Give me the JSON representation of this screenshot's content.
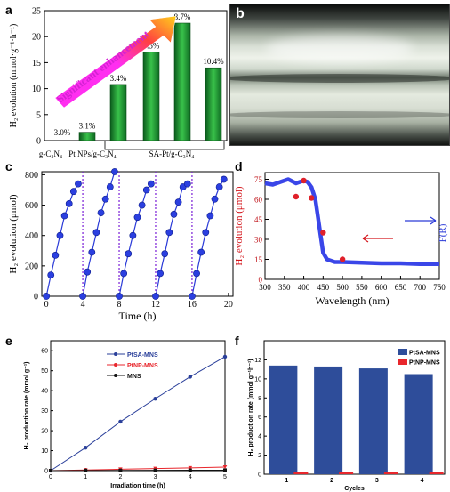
{
  "panel_labels": {
    "a": "a",
    "b": "b",
    "c": "c",
    "d": "d",
    "e": "e",
    "f": "f"
  },
  "chart_data": [
    {
      "panel": "a",
      "type": "bar",
      "categories": [
        "g-C3N4",
        "Pt NPs/g-C3N4",
        "SA-Pt/g-C3N4 (3.4%)",
        "SA-Pt/g-C3N4 (5.5%)",
        "SA-Pt/g-C3N4 (8.7%)",
        "SA-Pt/g-C3N4 (10.4%)"
      ],
      "values": [
        0.0,
        1.6,
        10.8,
        17.0,
        22.6,
        14.0
      ],
      "bar_labels": [
        "3.0%",
        "3.1%",
        "3.4%",
        "5.5%",
        "8.7%",
        "10.4%"
      ],
      "x_tick_labels": [
        "g-C₃N₄",
        "Pt NPs/g-C₃N₄",
        "SA-Pt/g-C₃N₄"
      ],
      "ylabel": "H₂ evolution (mmol·g⁻¹·h⁻¹)",
      "ylim": [
        0,
        25
      ],
      "yticks": [
        0,
        5,
        10,
        15,
        20,
        25
      ],
      "annotation": "Significant enhancement"
    },
    {
      "panel": "c",
      "type": "line",
      "xlabel": "Time (h)",
      "ylabel": "H₂ evolution (μmol)",
      "xlim": [
        -0.5,
        20.5
      ],
      "ylim": [
        0,
        820
      ],
      "xticks": [
        0,
        4,
        8,
        12,
        16,
        20
      ],
      "yticks": [
        0,
        200,
        400,
        600,
        800
      ],
      "cycle_boundaries": [
        4,
        8,
        12,
        16
      ],
      "series": [
        {
          "x": [
            0,
            0.5,
            1,
            1.5,
            2,
            2.5,
            3,
            3.5
          ],
          "y": [
            0,
            140,
            270,
            400,
            530,
            610,
            690,
            740
          ]
        },
        {
          "x": [
            4,
            4.5,
            5,
            5.5,
            6,
            6.5,
            7,
            7.5
          ],
          "y": [
            0,
            160,
            290,
            420,
            550,
            640,
            720,
            820
          ]
        },
        {
          "x": [
            8,
            8.5,
            9,
            9.5,
            10,
            10.5,
            11,
            11.5
          ],
          "y": [
            0,
            150,
            280,
            400,
            520,
            600,
            700,
            740
          ]
        },
        {
          "x": [
            12,
            12.5,
            13,
            13.5,
            14,
            14.5,
            15,
            15.5
          ],
          "y": [
            0,
            150,
            280,
            420,
            540,
            620,
            720,
            740
          ]
        },
        {
          "x": [
            16,
            16.5,
            17,
            17.5,
            18,
            18.5,
            19,
            19.5
          ],
          "y": [
            0,
            150,
            290,
            420,
            530,
            640,
            720,
            770
          ]
        }
      ]
    },
    {
      "panel": "d",
      "type": "line",
      "xlabel": "Wavelength (nm)",
      "ylabel_left": "H₂ evolution (μmol)",
      "ylabel_right": "F(R)",
      "xlim": [
        300,
        750
      ],
      "ylim": [
        0,
        80
      ],
      "xticks": [
        300,
        350,
        400,
        450,
        500,
        550,
        600,
        650,
        700,
        750
      ],
      "yticks": [
        0,
        15,
        30,
        45,
        60,
        75
      ],
      "absorption_curve": {
        "x": [
          300,
          320,
          340,
          360,
          380,
          400,
          410,
          420,
          430,
          440,
          450,
          460,
          480,
          500,
          550,
          600,
          650,
          700,
          750
        ],
        "y": [
          72,
          71,
          73,
          75,
          72,
          74,
          73,
          69,
          60,
          40,
          20,
          15,
          13,
          13,
          12.5,
          12,
          12,
          11.5,
          11.5
        ]
      },
      "h2_points": {
        "x": [
          380,
          400,
          420,
          450,
          500
        ],
        "y": [
          62,
          74,
          61,
          35,
          15
        ]
      }
    },
    {
      "panel": "e",
      "type": "line",
      "xlabel": "Irradiation time (h)",
      "ylabel": "H₂ production rate (mmol g⁻¹)",
      "xlim": [
        0,
        5
      ],
      "ylim": [
        0,
        65
      ],
      "xticks": [
        0,
        1,
        2,
        3,
        4,
        5
      ],
      "yticks": [
        0,
        10,
        20,
        30,
        40,
        50,
        60
      ],
      "legend_position": "top-center",
      "series": [
        {
          "name": "PtSA-MNS",
          "color": "#2a3f9a",
          "marker": "circle",
          "x": [
            0,
            1,
            2,
            3,
            4,
            5
          ],
          "y": [
            0,
            11.5,
            24.5,
            36,
            47,
            57
          ]
        },
        {
          "name": "PtNP-MNS",
          "color": "#e8262c",
          "marker": "triangle-down",
          "x": [
            0,
            1,
            2,
            3,
            4,
            5
          ],
          "y": [
            0,
            0.35,
            0.7,
            1.05,
            1.4,
            1.8
          ]
        },
        {
          "name": "MNS",
          "color": "#111111",
          "marker": "square",
          "x": [
            0,
            1,
            2,
            3,
            4,
            5
          ],
          "y": [
            0,
            0.05,
            0.1,
            0.15,
            0.2,
            0.25
          ]
        }
      ]
    },
    {
      "panel": "f",
      "type": "bar",
      "xlabel": "Cycles",
      "ylabel": "H₂ production rate (mmol g⁻¹h⁻¹)",
      "categories": [
        "1",
        "2",
        "3",
        "4"
      ],
      "ylim": [
        0,
        14
      ],
      "yticks": [
        0,
        2,
        4,
        6,
        8,
        10,
        12
      ],
      "legend_position": "top-right",
      "series": [
        {
          "name": "PtSA-MNS",
          "color": "#2e4d9a",
          "values": [
            11.4,
            11.3,
            11.1,
            10.5
          ]
        },
        {
          "name": "PtNP-MNS",
          "color": "#e8262c",
          "values": [
            0.28,
            0.27,
            0.26,
            0.25
          ]
        }
      ]
    }
  ]
}
